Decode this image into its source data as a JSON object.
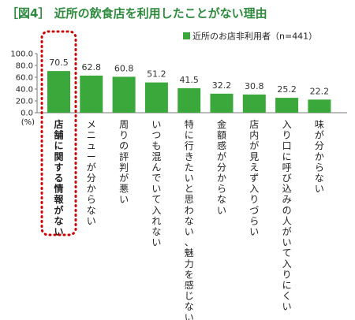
{
  "chart_data": {
    "type": "bar",
    "title": "［図4］ 近所の飲食店を利用したことがない理由",
    "ylabel": "(%)",
    "ylim": [
      0,
      100
    ],
    "y_ticks": [
      "0.0",
      "20.0",
      "40.0",
      "60.0",
      "80.0",
      "100.0"
    ],
    "legend": {
      "label": "近所のお店非利用者（n=441）",
      "placement": "top-right"
    },
    "series": [
      {
        "name": "近所のお店非利用者（n=441）",
        "color": "#3aa83a",
        "values": [
          70.5,
          62.8,
          60.8,
          51.2,
          41.5,
          32.2,
          30.8,
          25.2,
          22.2
        ]
      }
    ],
    "value_labels": [
      "70.5",
      "62.8",
      "60.8",
      "51.2",
      "41.5",
      "32.2",
      "30.8",
      "25.2",
      "22.2"
    ],
    "categories": [
      "店舗に関する情報がない",
      "メニューが分からない",
      "周りの評判が悪い",
      "いつも混んでいて入れない",
      "特に行きたいと思わない、魅力を感じない",
      "金額感が分からない",
      "店内が見えず入りづらい",
      "入り口に呼び込みの人がいて入りにくい",
      "味が分からない"
    ],
    "highlight": {
      "category_index": 0,
      "style": "red dotted rounded outline",
      "color": "#cc0000"
    },
    "grid": false
  }
}
